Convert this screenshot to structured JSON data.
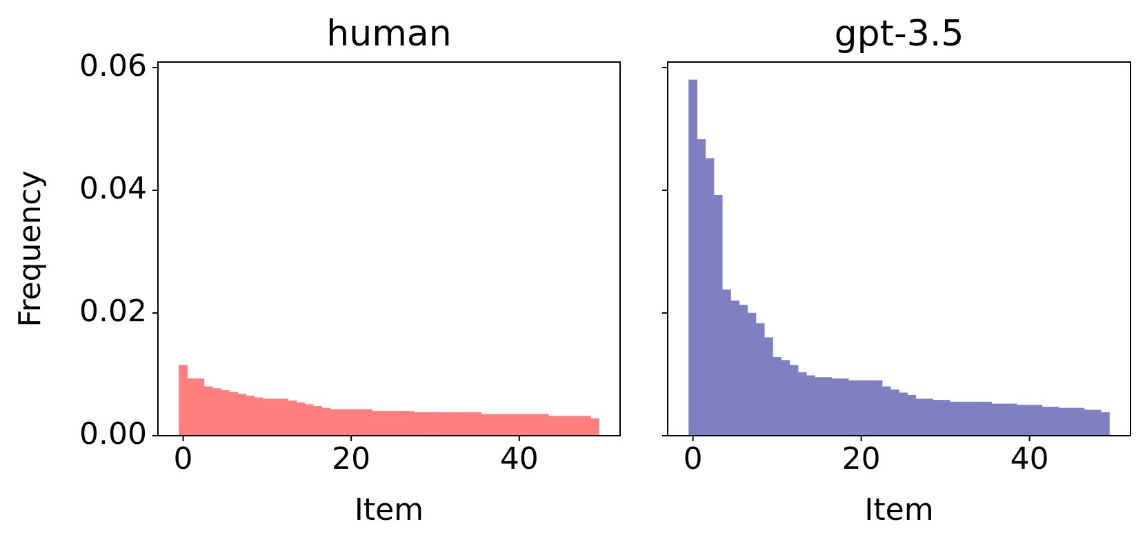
{
  "chart_data": [
    {
      "type": "bar",
      "title": "human",
      "xlabel": "Item",
      "ylabel": "Frequency",
      "color": "#ff7f7f",
      "x": [
        0,
        1,
        2,
        3,
        4,
        5,
        6,
        7,
        8,
        9,
        10,
        11,
        12,
        13,
        14,
        15,
        16,
        17,
        18,
        19,
        20,
        21,
        22,
        23,
        24,
        25,
        26,
        27,
        28,
        29,
        30,
        31,
        32,
        33,
        34,
        35,
        36,
        37,
        38,
        39,
        40,
        41,
        42,
        43,
        44,
        45,
        46,
        47,
        48,
        49
      ],
      "values": [
        0.0115,
        0.0093,
        0.0093,
        0.008,
        0.0077,
        0.0074,
        0.0071,
        0.0068,
        0.0065,
        0.0062,
        0.006,
        0.006,
        0.006,
        0.0057,
        0.0054,
        0.0051,
        0.0048,
        0.0045,
        0.0043,
        0.0043,
        0.0043,
        0.0043,
        0.0043,
        0.004,
        0.004,
        0.004,
        0.004,
        0.004,
        0.0038,
        0.0038,
        0.0038,
        0.0038,
        0.0038,
        0.0038,
        0.0038,
        0.0038,
        0.0035,
        0.0035,
        0.0035,
        0.0035,
        0.0035,
        0.0035,
        0.0035,
        0.0035,
        0.0032,
        0.0032,
        0.0032,
        0.0032,
        0.0032,
        0.0028
      ],
      "xlim": [
        -3,
        52
      ],
      "xticks": [
        0,
        20,
        40
      ],
      "ylim": [
        0,
        0.0609
      ],
      "yticks": [
        {
          "value": 0,
          "label": "0.00"
        },
        {
          "value": 0.02,
          "label": "0.02"
        },
        {
          "value": 0.04,
          "label": "0.04"
        },
        {
          "value": 0.06,
          "label": "0.06"
        }
      ],
      "ytick_labels": true
    },
    {
      "type": "bar",
      "title": "gpt-3.5",
      "xlabel": "Item",
      "color": "#8080c0",
      "x": [
        0,
        1,
        2,
        3,
        4,
        5,
        6,
        7,
        8,
        9,
        10,
        11,
        12,
        13,
        14,
        15,
        16,
        17,
        18,
        19,
        20,
        21,
        22,
        23,
        24,
        25,
        26,
        27,
        28,
        29,
        30,
        31,
        32,
        33,
        34,
        35,
        36,
        37,
        38,
        39,
        40,
        41,
        42,
        43,
        44,
        45,
        46,
        47,
        48,
        49
      ],
      "values": [
        0.058,
        0.0483,
        0.0452,
        0.0392,
        0.0238,
        0.022,
        0.0213,
        0.02,
        0.0183,
        0.016,
        0.0128,
        0.0123,
        0.0115,
        0.0103,
        0.0098,
        0.0095,
        0.0095,
        0.0093,
        0.0093,
        0.009,
        0.009,
        0.009,
        0.009,
        0.008,
        0.0075,
        0.007,
        0.0066,
        0.006,
        0.006,
        0.0058,
        0.0058,
        0.0055,
        0.0055,
        0.0055,
        0.0055,
        0.0055,
        0.0052,
        0.0052,
        0.0052,
        0.005,
        0.005,
        0.005,
        0.0047,
        0.0047,
        0.0045,
        0.0045,
        0.0045,
        0.0042,
        0.0042,
        0.0038
      ],
      "xlim": [
        -3,
        52
      ],
      "xticks": [
        0,
        20,
        40
      ],
      "ylim": [
        0,
        0.0609
      ],
      "yticks": [
        0,
        0.02,
        0.04,
        0.06
      ],
      "ytick_labels": false
    }
  ]
}
